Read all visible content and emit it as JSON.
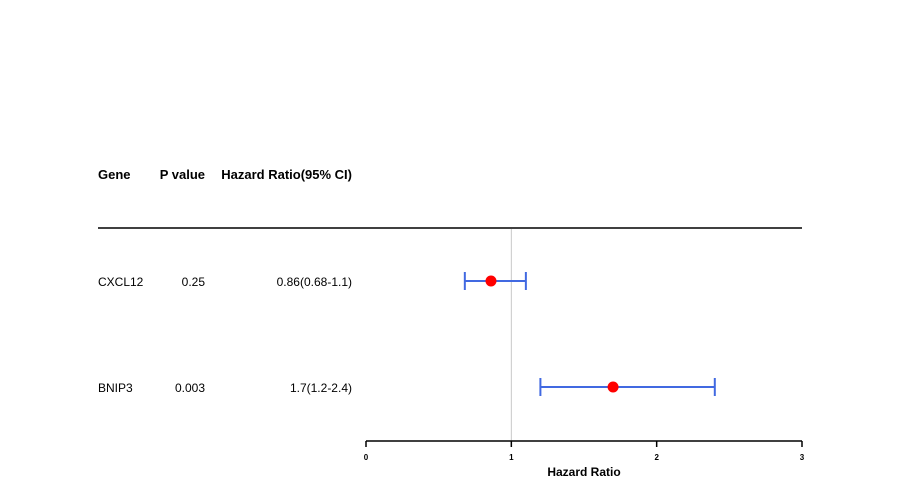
{
  "table": {
    "headers": {
      "gene": "Gene",
      "p_value": "P value",
      "hr": "Hazard Ratio(95% CI)"
    },
    "rows": [
      {
        "gene": "CXCL12",
        "p_value": "0.25",
        "hr_text": "0.86(0.68-1.1)"
      },
      {
        "gene": "BNIP3",
        "p_value": "0.003",
        "hr_text": "1.7(1.2-2.4)"
      }
    ]
  },
  "chart_data": {
    "type": "forest",
    "xlabel": "Hazard Ratio",
    "xlim": [
      0,
      3
    ],
    "xticks": [
      "0",
      "1",
      "2",
      "3"
    ],
    "reference_line": 1,
    "points": [
      {
        "category": "CXCL12",
        "estimate": 0.86,
        "lower": 0.68,
        "upper": 1.1
      },
      {
        "category": "BNIP3",
        "estimate": 1.7,
        "lower": 1.2,
        "upper": 2.4
      }
    ],
    "colors": {
      "point": "#ff0000",
      "interval": "#4169e1",
      "reference": "#c8c8c8",
      "axis": "#000000"
    }
  }
}
